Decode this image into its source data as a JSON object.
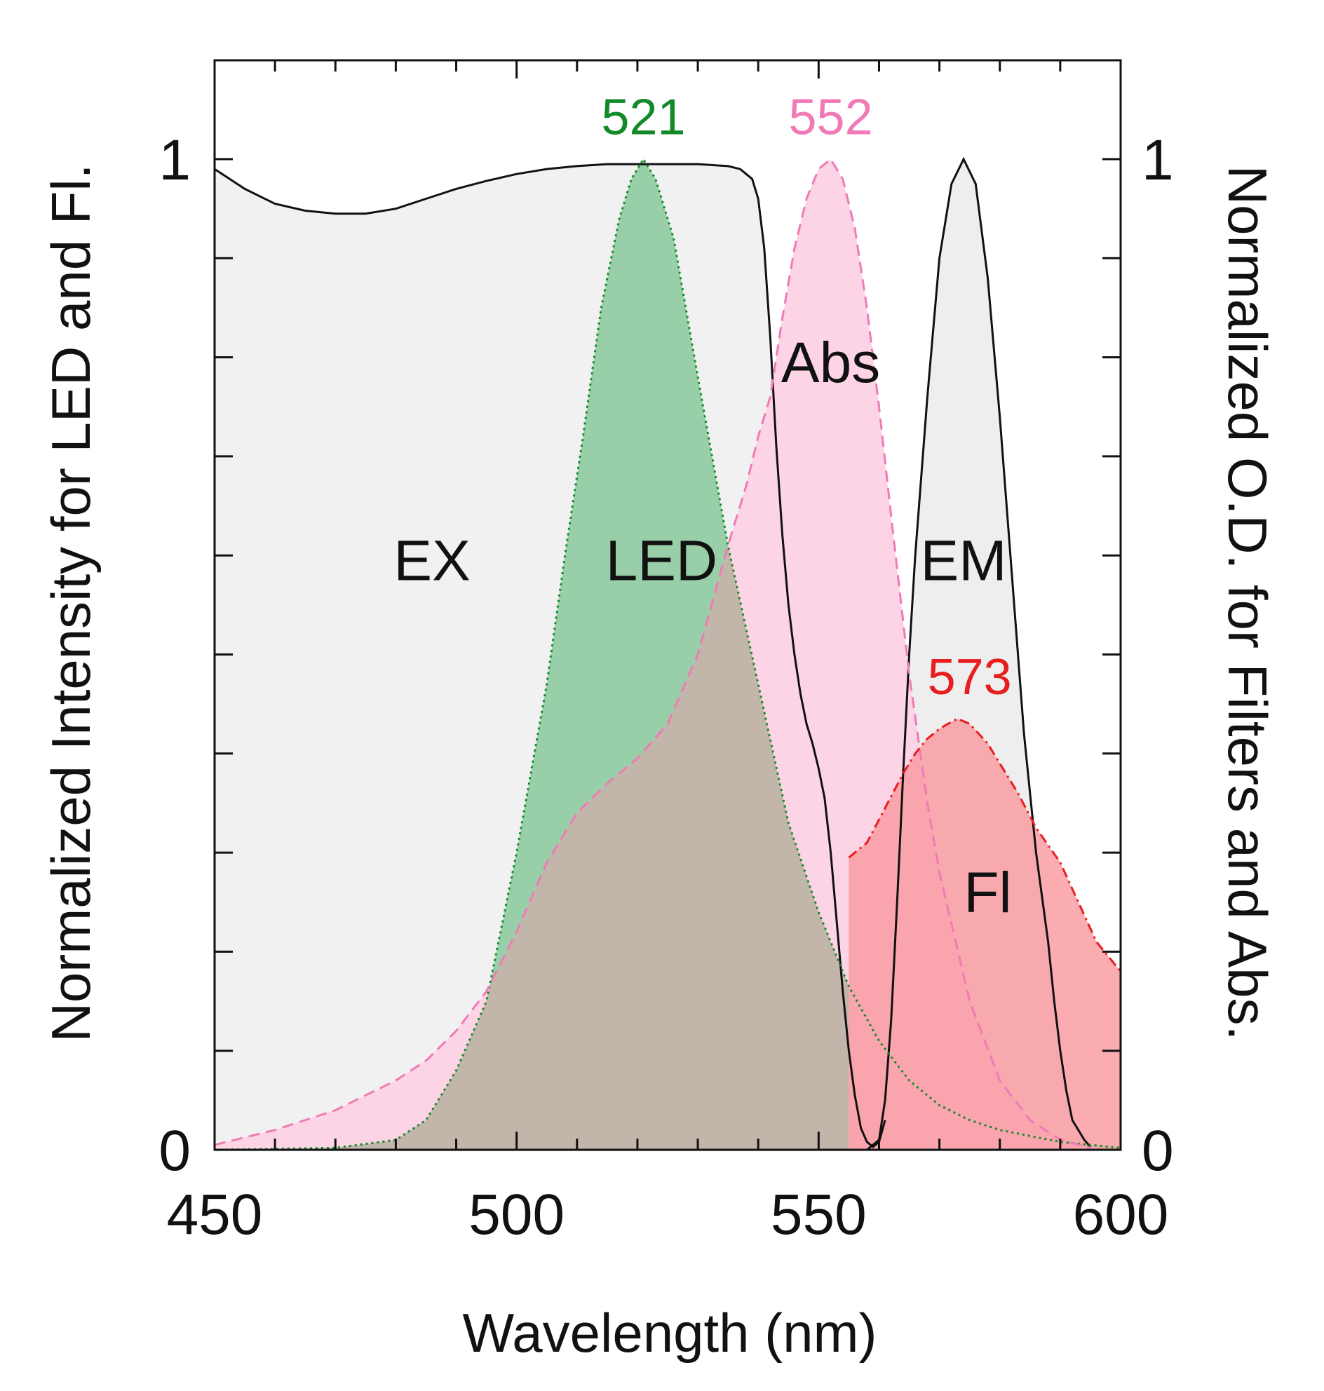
{
  "chart_data": {
    "type": "area",
    "title": "",
    "xlabel": "Wavelength (nm)",
    "ylabel_left": "Normalized Intensity for LED and Fl.",
    "ylabel_right": "Normalized O.D. for Filters and Abs.",
    "xlim": [
      450,
      600
    ],
    "ylim": [
      0,
      1.1
    ],
    "x_ticks": [
      450,
      500,
      550,
      600
    ],
    "x_tick_labels": [
      "450",
      "500",
      "550",
      "600"
    ],
    "x_minor_step": 10,
    "y_ticks_left": [
      0,
      1
    ],
    "y_tick_labels_left": [
      "0",
      "1"
    ],
    "y_ticks_right": [
      0,
      1
    ],
    "y_tick_labels_right": [
      "0",
      "1"
    ],
    "y_minor_step": 0.1,
    "colors": {
      "ex_fill": "#f1f1f1",
      "ex_line": "#111111",
      "em_fill": "#eeeeee",
      "em_line": "#111111",
      "led_fill": "#98cfa8",
      "led_line": "#138a2a",
      "abs_fill": "#fcd4e6",
      "abs_line": "#f07ab6",
      "overlap_fill": "#c2b5aa",
      "fl_fill": "#f99aa0",
      "fl_line": "#e81e1e",
      "label_green": "#138a2a",
      "label_pink": "#f07ab6",
      "label_red": "#e81e1e"
    },
    "series": [
      {
        "name": "EX",
        "style": "solid",
        "points": [
          [
            450,
            0.99
          ],
          [
            455,
            0.97
          ],
          [
            460,
            0.955
          ],
          [
            465,
            0.948
          ],
          [
            470,
            0.945
          ],
          [
            475,
            0.945
          ],
          [
            480,
            0.95
          ],
          [
            485,
            0.96
          ],
          [
            490,
            0.97
          ],
          [
            495,
            0.978
          ],
          [
            500,
            0.985
          ],
          [
            505,
            0.99
          ],
          [
            510,
            0.993
          ],
          [
            515,
            0.995
          ],
          [
            520,
            0.995
          ],
          [
            525,
            0.995
          ],
          [
            530,
            0.995
          ],
          [
            535,
            0.993
          ],
          [
            537,
            0.99
          ],
          [
            539,
            0.98
          ],
          [
            540,
            0.96
          ],
          [
            541,
            0.91
          ],
          [
            542,
            0.82
          ],
          [
            543,
            0.71
          ],
          [
            544,
            0.62
          ],
          [
            545,
            0.55
          ],
          [
            546,
            0.5
          ],
          [
            547,
            0.46
          ],
          [
            548,
            0.43
          ],
          [
            549,
            0.41
          ],
          [
            550,
            0.385
          ],
          [
            551,
            0.355
          ],
          [
            552,
            0.3
          ],
          [
            553,
            0.23
          ],
          [
            554,
            0.16
          ],
          [
            555,
            0.1
          ],
          [
            556,
            0.055
          ],
          [
            557,
            0.022
          ],
          [
            558,
            0.008
          ],
          [
            559,
            0.003
          ],
          [
            560,
            0.008
          ],
          [
            561,
            0.03
          ]
        ]
      },
      {
        "name": "EM",
        "style": "solid",
        "points": [
          [
            558,
            0.0
          ],
          [
            560,
            0.01
          ],
          [
            561,
            0.05
          ],
          [
            562,
            0.13
          ],
          [
            563,
            0.25
          ],
          [
            564,
            0.38
          ],
          [
            565,
            0.5
          ],
          [
            566,
            0.6
          ],
          [
            568,
            0.76
          ],
          [
            570,
            0.9
          ],
          [
            572,
            0.975
          ],
          [
            574,
            1.0
          ],
          [
            576,
            0.975
          ],
          [
            578,
            0.88
          ],
          [
            580,
            0.74
          ],
          [
            582,
            0.58
          ],
          [
            584,
            0.42
          ],
          [
            586,
            0.3
          ],
          [
            588,
            0.21
          ],
          [
            589,
            0.15
          ],
          [
            590,
            0.1
          ],
          [
            591,
            0.06
          ],
          [
            592,
            0.03
          ],
          [
            594,
            0.01
          ],
          [
            595,
            0.003
          ]
        ]
      },
      {
        "name": "LED",
        "style": "dotted",
        "peak": 521,
        "points": [
          [
            450,
            0.0
          ],
          [
            470,
            0.002
          ],
          [
            480,
            0.01
          ],
          [
            485,
            0.03
          ],
          [
            490,
            0.08
          ],
          [
            495,
            0.15
          ],
          [
            500,
            0.3
          ],
          [
            505,
            0.47
          ],
          [
            508,
            0.6
          ],
          [
            511,
            0.72
          ],
          [
            514,
            0.85
          ],
          [
            517,
            0.94
          ],
          [
            519,
            0.98
          ],
          [
            521,
            1.0
          ],
          [
            523,
            0.98
          ],
          [
            526,
            0.92
          ],
          [
            530,
            0.78
          ],
          [
            535,
            0.61
          ],
          [
            540,
            0.47
          ],
          [
            545,
            0.33
          ],
          [
            550,
            0.24
          ],
          [
            555,
            0.165
          ],
          [
            560,
            0.11
          ],
          [
            565,
            0.07
          ],
          [
            570,
            0.045
          ],
          [
            575,
            0.03
          ],
          [
            580,
            0.02
          ],
          [
            590,
            0.008
          ],
          [
            600,
            0.002
          ]
        ]
      },
      {
        "name": "Abs",
        "style": "dashed",
        "peak": 552,
        "points": [
          [
            450,
            0.005
          ],
          [
            460,
            0.02
          ],
          [
            470,
            0.04
          ],
          [
            480,
            0.07
          ],
          [
            485,
            0.09
          ],
          [
            490,
            0.12
          ],
          [
            495,
            0.16
          ],
          [
            500,
            0.22
          ],
          [
            505,
            0.29
          ],
          [
            510,
            0.34
          ],
          [
            515,
            0.37
          ],
          [
            520,
            0.395
          ],
          [
            525,
            0.43
          ],
          [
            530,
            0.5
          ],
          [
            535,
            0.61
          ],
          [
            538,
            0.67
          ],
          [
            540,
            0.72
          ],
          [
            542,
            0.76
          ],
          [
            544,
            0.84
          ],
          [
            546,
            0.91
          ],
          [
            548,
            0.96
          ],
          [
            550,
            0.99
          ],
          [
            552,
            1.0
          ],
          [
            554,
            0.98
          ],
          [
            556,
            0.93
          ],
          [
            558,
            0.85
          ],
          [
            560,
            0.75
          ],
          [
            562,
            0.64
          ],
          [
            565,
            0.48
          ],
          [
            568,
            0.35
          ],
          [
            570,
            0.28
          ],
          [
            575,
            0.15
          ],
          [
            580,
            0.07
          ],
          [
            585,
            0.03
          ],
          [
            590,
            0.01
          ],
          [
            595,
            0.002
          ]
        ]
      },
      {
        "name": "Fl",
        "style": "dashdot",
        "peak": 573,
        "points": [
          [
            555,
            0.295
          ],
          [
            558,
            0.31
          ],
          [
            561,
            0.345
          ],
          [
            564,
            0.38
          ],
          [
            566,
            0.4
          ],
          [
            568,
            0.415
          ],
          [
            570,
            0.425
          ],
          [
            572,
            0.432
          ],
          [
            573,
            0.435
          ],
          [
            575,
            0.43
          ],
          [
            578,
            0.41
          ],
          [
            580,
            0.39
          ],
          [
            583,
            0.36
          ],
          [
            586,
            0.325
          ],
          [
            590,
            0.29
          ],
          [
            593,
            0.25
          ],
          [
            596,
            0.21
          ],
          [
            600,
            0.18
          ]
        ]
      }
    ],
    "annotations": [
      {
        "text": "EX",
        "x": 486,
        "y": 0.575
      },
      {
        "text": "LED",
        "x": 524,
        "y": 0.575
      },
      {
        "text": "Abs",
        "x": 552,
        "y": 0.775
      },
      {
        "text": "EM",
        "x": 574,
        "y": 0.575
      },
      {
        "text": "Fl",
        "x": 578,
        "y": 0.24
      },
      {
        "text": "521",
        "x": 521,
        "y": 1.025
      },
      {
        "text": "552",
        "x": 552,
        "y": 1.025
      },
      {
        "text": "573",
        "x": 575,
        "y": 0.46
      }
    ]
  }
}
